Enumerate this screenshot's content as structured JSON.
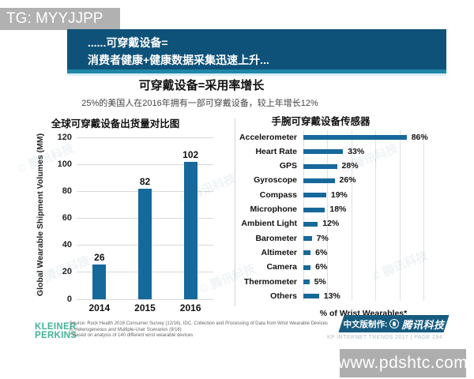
{
  "page": {
    "tag": "TG: MYYJJPP",
    "url_watermark": "www.pdshtc.com",
    "diag_watermark": "© 腾讯科技"
  },
  "header": {
    "line1": "......可穿戴设备=",
    "line2": "消费者健康+健康数据采集迅速上升...",
    "bg_color": "#0e527a",
    "accent_color": "#1f87a8"
  },
  "main": {
    "title": "可穿戴设备=采用率增长",
    "subtitle": "25%的美国人在2016年拥有一部可穿戴设备，较上年增长12%"
  },
  "chart_data": [
    {
      "type": "bar",
      "title": "全球可穿戴设备出货量对比图",
      "categories": [
        "2014",
        "2015",
        "2016"
      ],
      "values": [
        26,
        82,
        102
      ],
      "value_labels": [
        "26",
        "82",
        "102"
      ],
      "xlabel": "",
      "ylabel": "Global Wearable Shipment Volumes (MM)",
      "ylim": [
        0,
        120
      ],
      "yticks": [
        0,
        20,
        40,
        60,
        80,
        100,
        120
      ],
      "grid": true,
      "legend": false,
      "bar_color": "#16699b"
    },
    {
      "type": "bar",
      "orientation": "horizontal",
      "title": "手腕可穿戴设备传感器",
      "categories": [
        "Accelerometer",
        "Heart Rate",
        "GPS",
        "Gyroscope",
        "Compass",
        "Microphone",
        "Ambient Light",
        "Barometer",
        "Altimeter",
        "Camera",
        "Thermometer",
        "Others"
      ],
      "values": [
        86,
        33,
        28,
        26,
        19,
        18,
        12,
        7,
        6,
        6,
        5,
        13
      ],
      "value_labels": [
        "86%",
        "33%",
        "28%",
        "26%",
        "19%",
        "18%",
        "12%",
        "7%",
        "6%",
        "6%",
        "5%",
        "13%"
      ],
      "xlabel": "% of Wrist Wearables*",
      "ylabel": "",
      "xlim": [
        0,
        100
      ],
      "gridline_step": 20,
      "grid": true,
      "legend": false,
      "bar_color": "#16699b"
    }
  ],
  "footer": {
    "logo_line1": "KLEINER",
    "logo_line2": "PERKINS",
    "logo_color": "#45b298",
    "source_line1": "Source: Rock Health 2016 Consumer Survey (12/16), IDC, Collection and Processing of Data from Wrist Wearable Devices in Heterogeneous and Multiple-User Scenarios (9/16)",
    "source_line2": "* Based on analysis of 140 different wrist wearable devices",
    "cn_banner_prefix": "中文版制作:",
    "cn_banner_brand": "腾讯科技",
    "page_info": "KP INTERNET TRENDS 2017   |   PAGE 294"
  }
}
